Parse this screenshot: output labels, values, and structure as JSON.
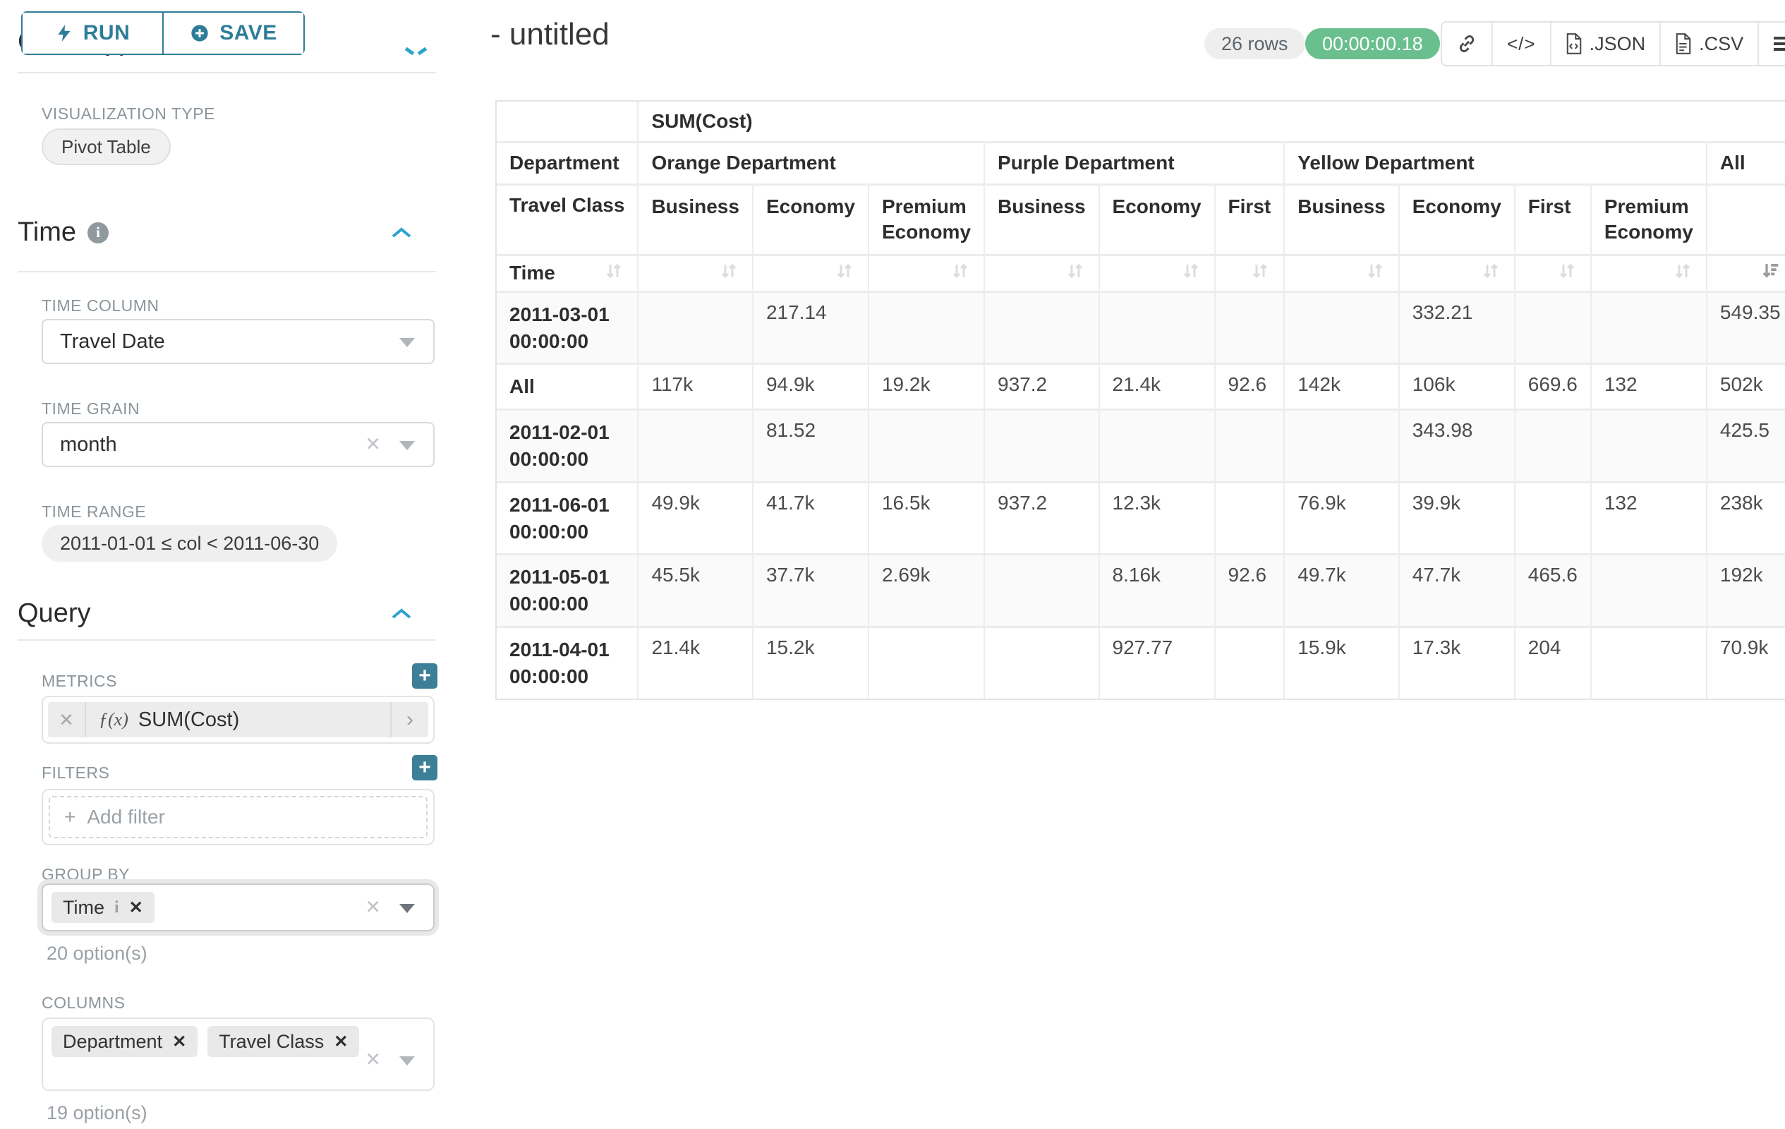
{
  "sidebar": {
    "run_button": "RUN",
    "save_button": "SAVE",
    "chart_type_heading": "Chart Type",
    "visualization": {
      "label": "VISUALIZATION TYPE",
      "value": "Pivot Table"
    },
    "time": {
      "title": "Time",
      "time_column_label": "TIME COLUMN",
      "time_column_value": "Travel Date",
      "time_grain_label": "TIME GRAIN",
      "time_grain_value": "month",
      "time_range_label": "TIME RANGE",
      "time_range_value": "2011-01-01 ≤ col < 2011-06-30"
    },
    "query": {
      "title": "Query",
      "metrics_label": "METRICS",
      "metric_fx": "ƒ(x)",
      "metric_value": "SUM(Cost)",
      "filters_label": "FILTERS",
      "add_filter_placeholder": "Add filter",
      "group_by_label": "GROUP BY",
      "group_by_items": [
        "Time"
      ],
      "group_by_hint": "20 option(s)",
      "columns_label": "COLUMNS",
      "columns_items": [
        "Department",
        "Travel Class"
      ],
      "columns_hint": "19 option(s)"
    }
  },
  "header": {
    "title": "- untitled",
    "row_count_badge": "26 rows",
    "query_timer": "00:00:00.18",
    "export_json": ".JSON",
    "export_csv": ".CSV"
  },
  "colors": {
    "accent_teal": "#2e7d98",
    "timer_green": "#6abf8e"
  },
  "pivot_table": {
    "metric_header": "SUM(Cost)",
    "department_axis_label": "Department",
    "travel_class_axis_label": "Travel Class",
    "time_axis_label": "Time",
    "column_groups": [
      {
        "name": "Orange Department",
        "classes": [
          "Business",
          "Economy",
          "Premium Economy"
        ]
      },
      {
        "name": "Purple Department",
        "classes": [
          "Business",
          "Economy",
          "First"
        ]
      },
      {
        "name": "Yellow Department",
        "classes": [
          "Business",
          "Economy",
          "First",
          "Premium Economy"
        ]
      },
      {
        "name": "All",
        "classes": [
          ""
        ]
      }
    ],
    "rows": [
      {
        "label": "2011-03-01 00:00:00",
        "values": [
          "",
          "217.14",
          "",
          "",
          "",
          "",
          "",
          "332.21",
          "",
          "",
          "549.35"
        ]
      },
      {
        "label": "All",
        "values": [
          "117k",
          "94.9k",
          "19.2k",
          "937.2",
          "21.4k",
          "92.6",
          "142k",
          "106k",
          "669.6",
          "132",
          "502k"
        ]
      },
      {
        "label": "2011-02-01 00:00:00",
        "values": [
          "",
          "81.52",
          "",
          "",
          "",
          "",
          "",
          "343.98",
          "",
          "",
          "425.5"
        ]
      },
      {
        "label": "2011-06-01 00:00:00",
        "values": [
          "49.9k",
          "41.7k",
          "16.5k",
          "937.2",
          "12.3k",
          "",
          "76.9k",
          "39.9k",
          "",
          "132",
          "238k"
        ]
      },
      {
        "label": "2011-05-01 00:00:00",
        "values": [
          "45.5k",
          "37.7k",
          "2.69k",
          "",
          "8.16k",
          "92.6",
          "49.7k",
          "47.7k",
          "465.6",
          "",
          "192k"
        ]
      },
      {
        "label": "2011-04-01 00:00:00",
        "values": [
          "21.4k",
          "15.2k",
          "",
          "",
          "927.77",
          "",
          "15.9k",
          "17.3k",
          "204",
          "",
          "70.9k"
        ]
      }
    ],
    "sorted_column": "All",
    "sort_direction": "desc"
  }
}
